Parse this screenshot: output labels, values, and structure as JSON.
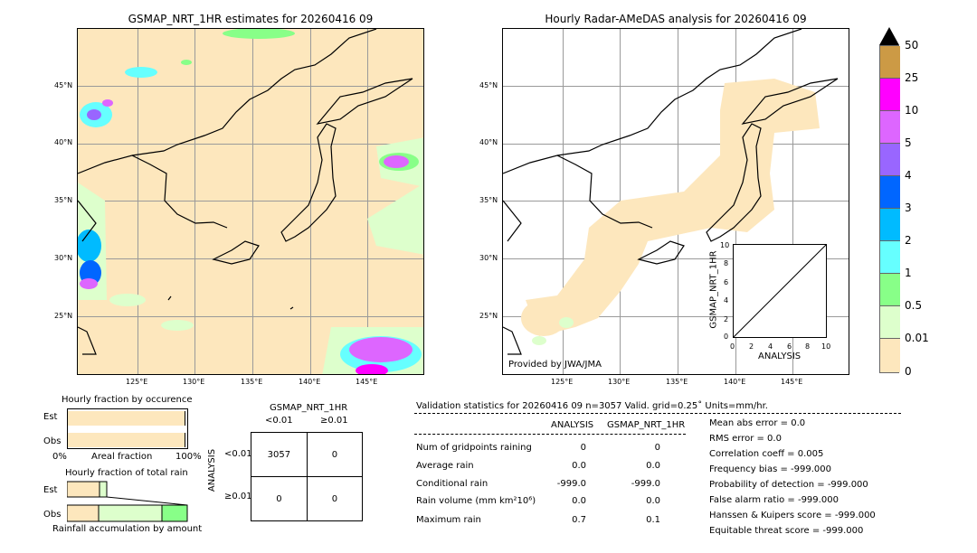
{
  "left_map": {
    "title": "GSMAP_NRT_1HR estimates for 20260416 09",
    "lat_labels": [
      "45°N",
      "40°N",
      "35°N",
      "30°N",
      "25°N"
    ],
    "lon_labels": [
      "125°E",
      "130°E",
      "135°E",
      "140°E",
      "145°E"
    ]
  },
  "right_map": {
    "title": "Hourly Radar-AMeDAS analysis for 20260416 09",
    "lat_labels": [
      "45°N",
      "40°N",
      "35°N",
      "30°N",
      "25°N"
    ],
    "lon_labels": [
      "125°E",
      "130°E",
      "135°E",
      "140°E",
      "145°E"
    ],
    "provided_by": "Provided by JWA/JMA"
  },
  "inset": {
    "ylabel": "GSMAP_NRT_1HR",
    "xlabel": "ANALYSIS",
    "ticks": [
      "0",
      "2",
      "4",
      "6",
      "8",
      "10"
    ]
  },
  "colorbar": {
    "labels": [
      "50",
      "25",
      "10",
      "5",
      "4",
      "3",
      "2",
      "1",
      "0.5",
      "0.01",
      "0"
    ],
    "colors": {
      "over": "#000000",
      "c25_50": "#cc9a45",
      "c10_25": "#ff00ff",
      "c5_10": "#dd66ff",
      "c4_5": "#9966ff",
      "c3_4": "#0066ff",
      "c2_3": "#00bbff",
      "c1_2": "#66ffff",
      "c05_1": "#88ff88",
      "c001_05": "#ddffcc",
      "c0_001": "#fde7bd"
    }
  },
  "fraction_occurrence": {
    "title": "Hourly fraction by occurence",
    "row_est": "Est",
    "row_obs": "Obs",
    "axis_left": "0%",
    "axis_mid": "Areal fraction",
    "axis_right": "100%",
    "est_fraction": 0.98,
    "obs_fraction": 0.98
  },
  "fraction_total": {
    "title": "Hourly fraction of total rain",
    "row_est": "Est",
    "row_obs": "Obs",
    "footer": "Rainfall accumulation by amount"
  },
  "contingency": {
    "title": "GSMAP_NRT_1HR",
    "col1": "<0.01",
    "col2": "≥0.01",
    "row_axis": "ANALYSIS",
    "row1": "<0.01",
    "row2": "≥0.01",
    "cells": [
      "3057",
      "0",
      "0",
      "0"
    ]
  },
  "validation": {
    "header": "Validation statistics for 20260416 09  n=3057 Valid. grid=0.25˚ Units=mm/hr.",
    "col_analysis": "ANALYSIS",
    "col_gsmap": "GSMAP_NRT_1HR",
    "rows": [
      {
        "label": "Num of gridpoints raining",
        "a": "0",
        "g": "0"
      },
      {
        "label": "Average rain",
        "a": "0.0",
        "g": "0.0"
      },
      {
        "label": "Conditional rain",
        "a": "-999.0",
        "g": "-999.0"
      },
      {
        "label": "Rain volume (mm km²10⁶)",
        "a": "0.0",
        "g": "0.0"
      },
      {
        "label": "Maximum rain",
        "a": "0.7",
        "g": "0.1"
      }
    ],
    "scores": [
      "Mean abs error =    0.0",
      "RMS error =    0.0",
      "Correlation coeff =  0.005",
      "Frequency bias = -999.000",
      "Probability of detection = -999.000",
      "False alarm ratio = -999.000",
      "Hanssen & Kuipers score = -999.000",
      "Equitable threat score = -999.000"
    ]
  },
  "chart_data": [
    {
      "type": "heatmap",
      "title": "GSMAP_NRT_1HR estimates for 20260416 09",
      "lon_ticks": [
        125,
        130,
        135,
        140,
        145
      ],
      "lat_ticks": [
        45,
        40,
        35,
        30,
        25
      ]
    },
    {
      "type": "heatmap",
      "title": "Hourly Radar-AMeDAS analysis for 20260416 09",
      "lon_ticks": [
        125,
        130,
        135,
        140,
        145
      ],
      "lat_ticks": [
        45,
        40,
        35,
        30,
        25
      ]
    },
    {
      "type": "scatter",
      "xlabel": "ANALYSIS",
      "ylabel": "GSMAP_NRT_1HR",
      "xlim": [
        0,
        10
      ],
      "ylim": [
        0,
        10
      ],
      "x": [
        0,
        10
      ],
      "y": [
        0,
        10
      ]
    }
  ]
}
